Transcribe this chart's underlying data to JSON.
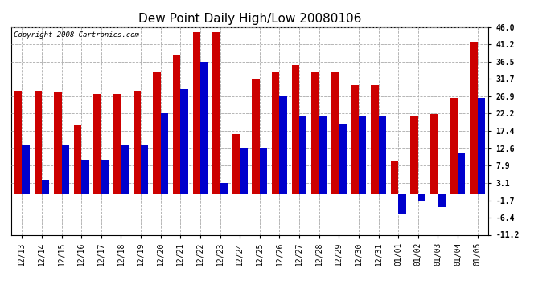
{
  "title": "Dew Point Daily High/Low 20080106",
  "copyright": "Copyright 2008 Cartronics.com",
  "labels": [
    "12/13",
    "12/14",
    "12/15",
    "12/16",
    "12/17",
    "12/18",
    "12/19",
    "12/20",
    "12/21",
    "12/22",
    "12/23",
    "12/24",
    "12/25",
    "12/26",
    "12/27",
    "12/28",
    "12/29",
    "12/30",
    "12/31",
    "01/01",
    "01/02",
    "01/03",
    "01/04",
    "01/05"
  ],
  "highs": [
    28.5,
    28.5,
    28.0,
    19.0,
    27.5,
    27.5,
    28.5,
    33.5,
    38.5,
    44.6,
    44.6,
    16.5,
    31.7,
    33.5,
    35.5,
    33.5,
    33.5,
    30.0,
    30.0,
    9.0,
    21.5,
    22.0,
    26.5,
    42.0
  ],
  "lows": [
    13.5,
    4.0,
    13.5,
    9.5,
    9.5,
    13.5,
    13.5,
    22.2,
    29.0,
    36.5,
    3.1,
    12.5,
    12.6,
    26.9,
    21.5,
    21.5,
    19.5,
    21.5,
    21.5,
    -5.5,
    -1.7,
    -3.5,
    11.5,
    26.5
  ],
  "high_color": "#cc0000",
  "low_color": "#0000cc",
  "ylim_min": -11.2,
  "ylim_max": 46.0,
  "yticks": [
    46.0,
    41.2,
    36.5,
    31.7,
    26.9,
    22.2,
    17.4,
    12.6,
    7.9,
    3.1,
    -1.7,
    -6.4,
    -11.2
  ],
  "bg_color": "#ffffff",
  "grid_color": "#aaaaaa",
  "title_fontsize": 11,
  "tick_fontsize": 7,
  "copyright_fontsize": 6.5
}
